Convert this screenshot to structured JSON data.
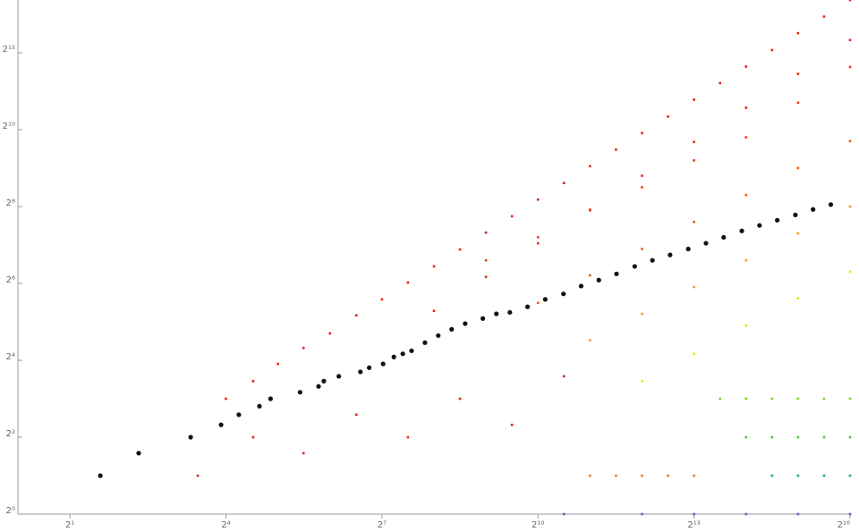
{
  "chart_data": {
    "type": "scatter",
    "log_scale": true,
    "log_base": 2,
    "xlim": [
      1,
      65536
    ],
    "ylim": [
      1,
      10600
    ],
    "xticks": [
      {
        "value": 2,
        "label": "2¹"
      },
      {
        "value": 16,
        "label": "2⁴"
      },
      {
        "value": 128,
        "label": "2⁷"
      },
      {
        "value": 1024,
        "label": "2¹⁰"
      },
      {
        "value": 8192,
        "label": "2¹³"
      },
      {
        "value": 65536,
        "label": "2¹⁶"
      }
    ],
    "yticks": [
      {
        "value": 1,
        "label": "2⁰"
      },
      {
        "value": 4,
        "label": "2²"
      },
      {
        "value": 16,
        "label": "2⁴"
      },
      {
        "value": 64,
        "label": "2⁶"
      },
      {
        "value": 256,
        "label": "2⁸"
      },
      {
        "value": 1024,
        "label": "2¹⁰"
      },
      {
        "value": 4096,
        "label": "2¹²"
      }
    ],
    "series": [
      {
        "color": "#e3231c",
        "x": [
          16,
          23,
          32,
          45,
          64,
          91,
          128,
          181,
          256,
          362,
          512,
          724,
          1024,
          1448,
          2048,
          2896,
          4096,
          5793,
          8192,
          11585,
          16384,
          23170,
          32768,
          46341,
          65536
        ],
        "values": [
          8,
          11,
          15,
          20,
          26,
          36,
          48,
          65,
          87,
          118,
          160,
          215,
          290,
          391,
          530,
          714,
          962,
          1296,
          1758,
          2369,
          3191,
          4299,
          5832,
          7857,
          10584
        ]
      },
      {
        "color": "#e62a1a",
        "x": [
          256,
          512,
          1024,
          2048,
          4096,
          8192,
          16384,
          32768,
          65536
        ],
        "values": [
          39,
          72,
          132,
          242,
          446,
          820,
          1520,
          2797,
          5149
        ]
      },
      {
        "color": "#ea3a18",
        "x": [
          512,
          1024,
          2048,
          4096,
          8192,
          16384,
          32768,
          65536
        ],
        "values": [
          97,
          147,
          239,
          362,
          588,
          891,
          1663,
          3170
        ]
      },
      {
        "color": "#f05a14",
        "x": [
          1024,
          2048,
          4096,
          8192,
          16384,
          32768,
          65536
        ],
        "values": [
          45,
          74,
          119,
          194,
          315,
          512,
          832
        ]
      },
      {
        "color": "#f39a1c",
        "x": [
          2048,
          4096,
          8192,
          16384,
          32768,
          65536
        ],
        "values": [
          23,
          37,
          60,
          97,
          158,
          256
        ]
      },
      {
        "color": "#e8e21a",
        "x": [
          4096,
          8192,
          16384,
          32768,
          65536
        ],
        "values": [
          11,
          18,
          30,
          49,
          79
        ]
      },
      {
        "color": "#7ed321",
        "x": [
          11585,
          16384,
          23170,
          32768,
          46341,
          65536
        ],
        "values": [
          8,
          8,
          8,
          8,
          8,
          8
        ]
      },
      {
        "color": "#4cc83a",
        "x": [
          16384,
          23170,
          32768,
          46341,
          65536
        ],
        "values": [
          4,
          4,
          4,
          4,
          4
        ]
      },
      {
        "color": "#1aa3a0",
        "x": [
          23170,
          32768,
          46341,
          65536
        ],
        "values": [
          2,
          2,
          2,
          2
        ]
      },
      {
        "color": "#e3231c",
        "x": [
          11,
          23,
          45,
          91,
          181,
          362,
          724,
          1448
        ],
        "values": [
          2,
          4,
          3,
          6,
          4,
          8,
          5,
          12
        ]
      },
      {
        "color": "#f07a1a",
        "x": [
          2048,
          2896,
          4096,
          5793,
          8192
        ],
        "values": [
          2,
          2,
          2,
          2,
          2
        ]
      },
      {
        "color": "#8a4fc2",
        "x": [
          1448,
          4096,
          8192,
          16384,
          32768,
          65536
        ],
        "values": [
          1,
          1,
          1,
          1,
          1,
          1
        ]
      },
      {
        "color": "#111111",
        "marker": "circle",
        "x": [
          3,
          5,
          10,
          15,
          19,
          25,
          29,
          43,
          55,
          59,
          72,
          96,
          108,
          130,
          150,
          169,
          190,
          227,
          271,
          324,
          388,
          491,
          588,
          704,
          891,
          1128,
          1438,
          1820,
          2304,
          2916,
          3716,
          4705,
          5955,
          7584,
          9604,
          12160,
          15490,
          19610,
          24830,
          31630,
          40040,
          50690
        ],
        "values": [
          2,
          3,
          4,
          5,
          6,
          7,
          8,
          9,
          10,
          11,
          12,
          13,
          14,
          15,
          17,
          18,
          19,
          22,
          25,
          28,
          31,
          34,
          37,
          38,
          42,
          48,
          53,
          61,
          68,
          76,
          87,
          97,
          107,
          119,
          132,
          147,
          165,
          182,
          200,
          220,
          243,
          265
        ]
      }
    ]
  }
}
